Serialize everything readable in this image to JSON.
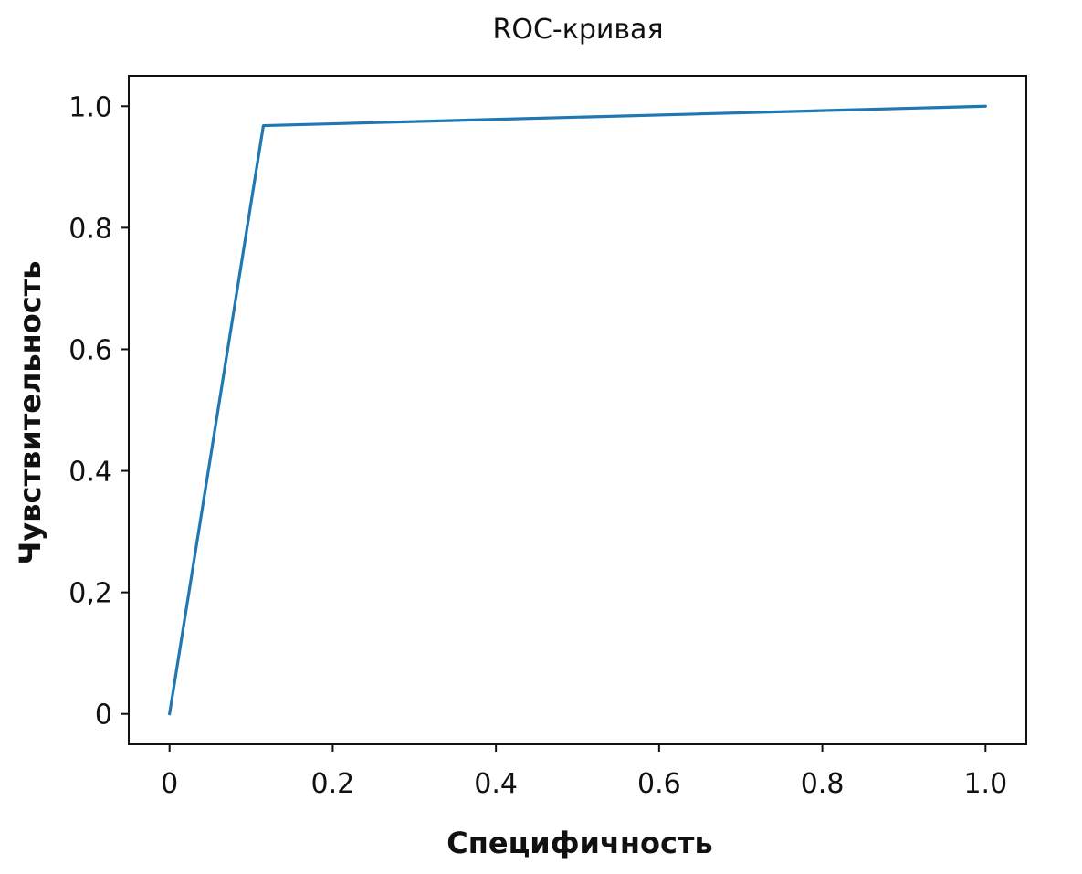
{
  "chart_data": {
    "type": "line",
    "title": "ROC-кривая",
    "xlabel": "Специфичность",
    "ylabel": "Чувствительность",
    "xlim": [
      -0.05,
      1.05
    ],
    "ylim": [
      -0.05,
      1.05
    ],
    "x_ticks": [
      {
        "value": 0,
        "label": "0"
      },
      {
        "value": 0.2,
        "label": "0.2"
      },
      {
        "value": 0.4,
        "label": "0.4"
      },
      {
        "value": 0.6,
        "label": "0.6"
      },
      {
        "value": 0.8,
        "label": "0.8"
      },
      {
        "value": 1.0,
        "label": "1.0"
      }
    ],
    "y_ticks": [
      {
        "value": 0,
        "label": "0"
      },
      {
        "value": 0.2,
        "label": "0,2"
      },
      {
        "value": 0.4,
        "label": "0.4"
      },
      {
        "value": 0.6,
        "label": "0.6"
      },
      {
        "value": 0.8,
        "label": "0.8"
      },
      {
        "value": 1.0,
        "label": "1.0"
      }
    ],
    "grid": false,
    "series": [
      {
        "color": "#1f77b4",
        "points": [
          {
            "x": 0,
            "y": 0
          },
          {
            "x": 0.115,
            "y": 0.968
          },
          {
            "x": 1.0,
            "y": 1.0
          }
        ]
      }
    ]
  }
}
